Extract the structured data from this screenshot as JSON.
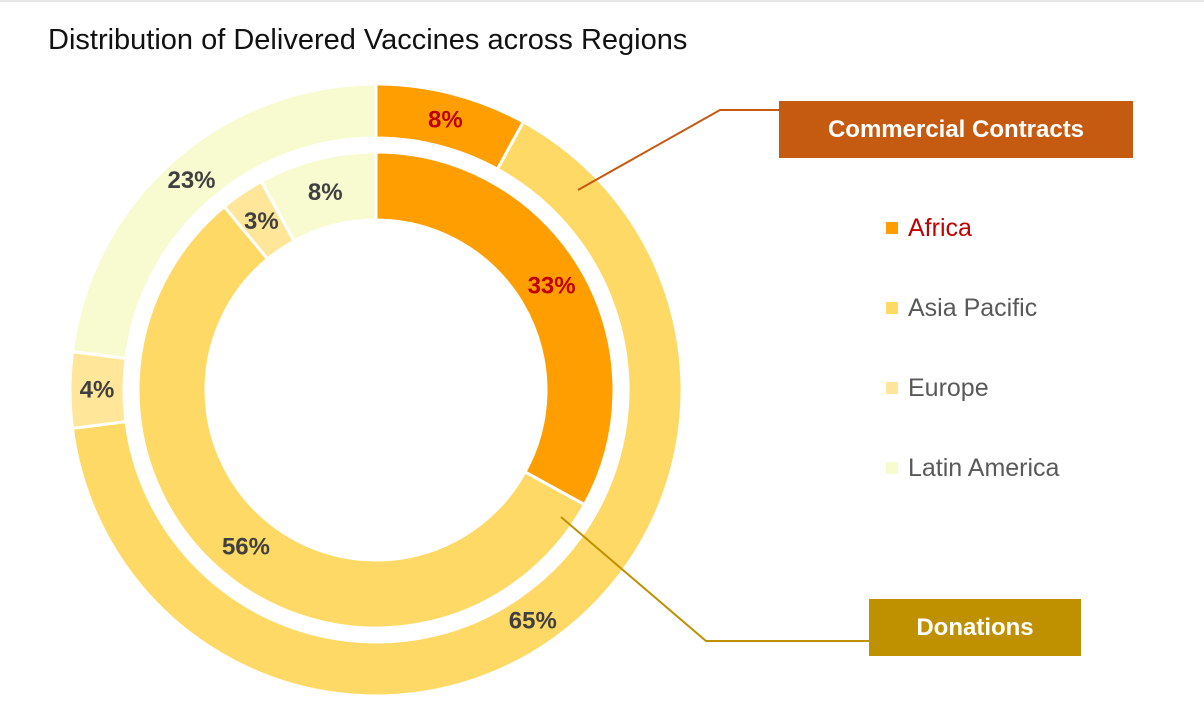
{
  "title": "Distribution of Delivered Vaccines across Regions",
  "colors": {
    "Africa": "#FF9E00",
    "Asia Pacific": "#FFD966",
    "Europe": "#FFE699",
    "Latin America": "#F8FBD0",
    "commercial_tag": "#C55A11",
    "donations_tag": "#BF9000",
    "africa_text": "#C00000",
    "label_text": "#404040",
    "legend_text": "#595959"
  },
  "tags": {
    "commercial": "Commercial Contracts",
    "donations": "Donations"
  },
  "legend": [
    {
      "name": "Africa",
      "text_color": "#C00000"
    },
    {
      "name": "Asia Pacific",
      "text_color": "#595959"
    },
    {
      "name": "Europe",
      "text_color": "#595959"
    },
    {
      "name": "Latin America",
      "text_color": "#595959"
    }
  ],
  "chart_data": {
    "type": "pie",
    "variant": "nested-donut",
    "title": "Distribution of Delivered Vaccines across Regions",
    "categories": [
      "Africa",
      "Asia Pacific",
      "Europe",
      "Latin America"
    ],
    "series": [
      {
        "name": "Commercial Contracts",
        "ring": "outer",
        "values": [
          8,
          65,
          4,
          23
        ],
        "labels": [
          "8%",
          "65%",
          "4%",
          "23%"
        ]
      },
      {
        "name": "Donations",
        "ring": "inner",
        "values": [
          33,
          56,
          3,
          8
        ],
        "labels": [
          "33%",
          "56%",
          "3%",
          "8%"
        ]
      }
    ],
    "legend_position": "right"
  }
}
